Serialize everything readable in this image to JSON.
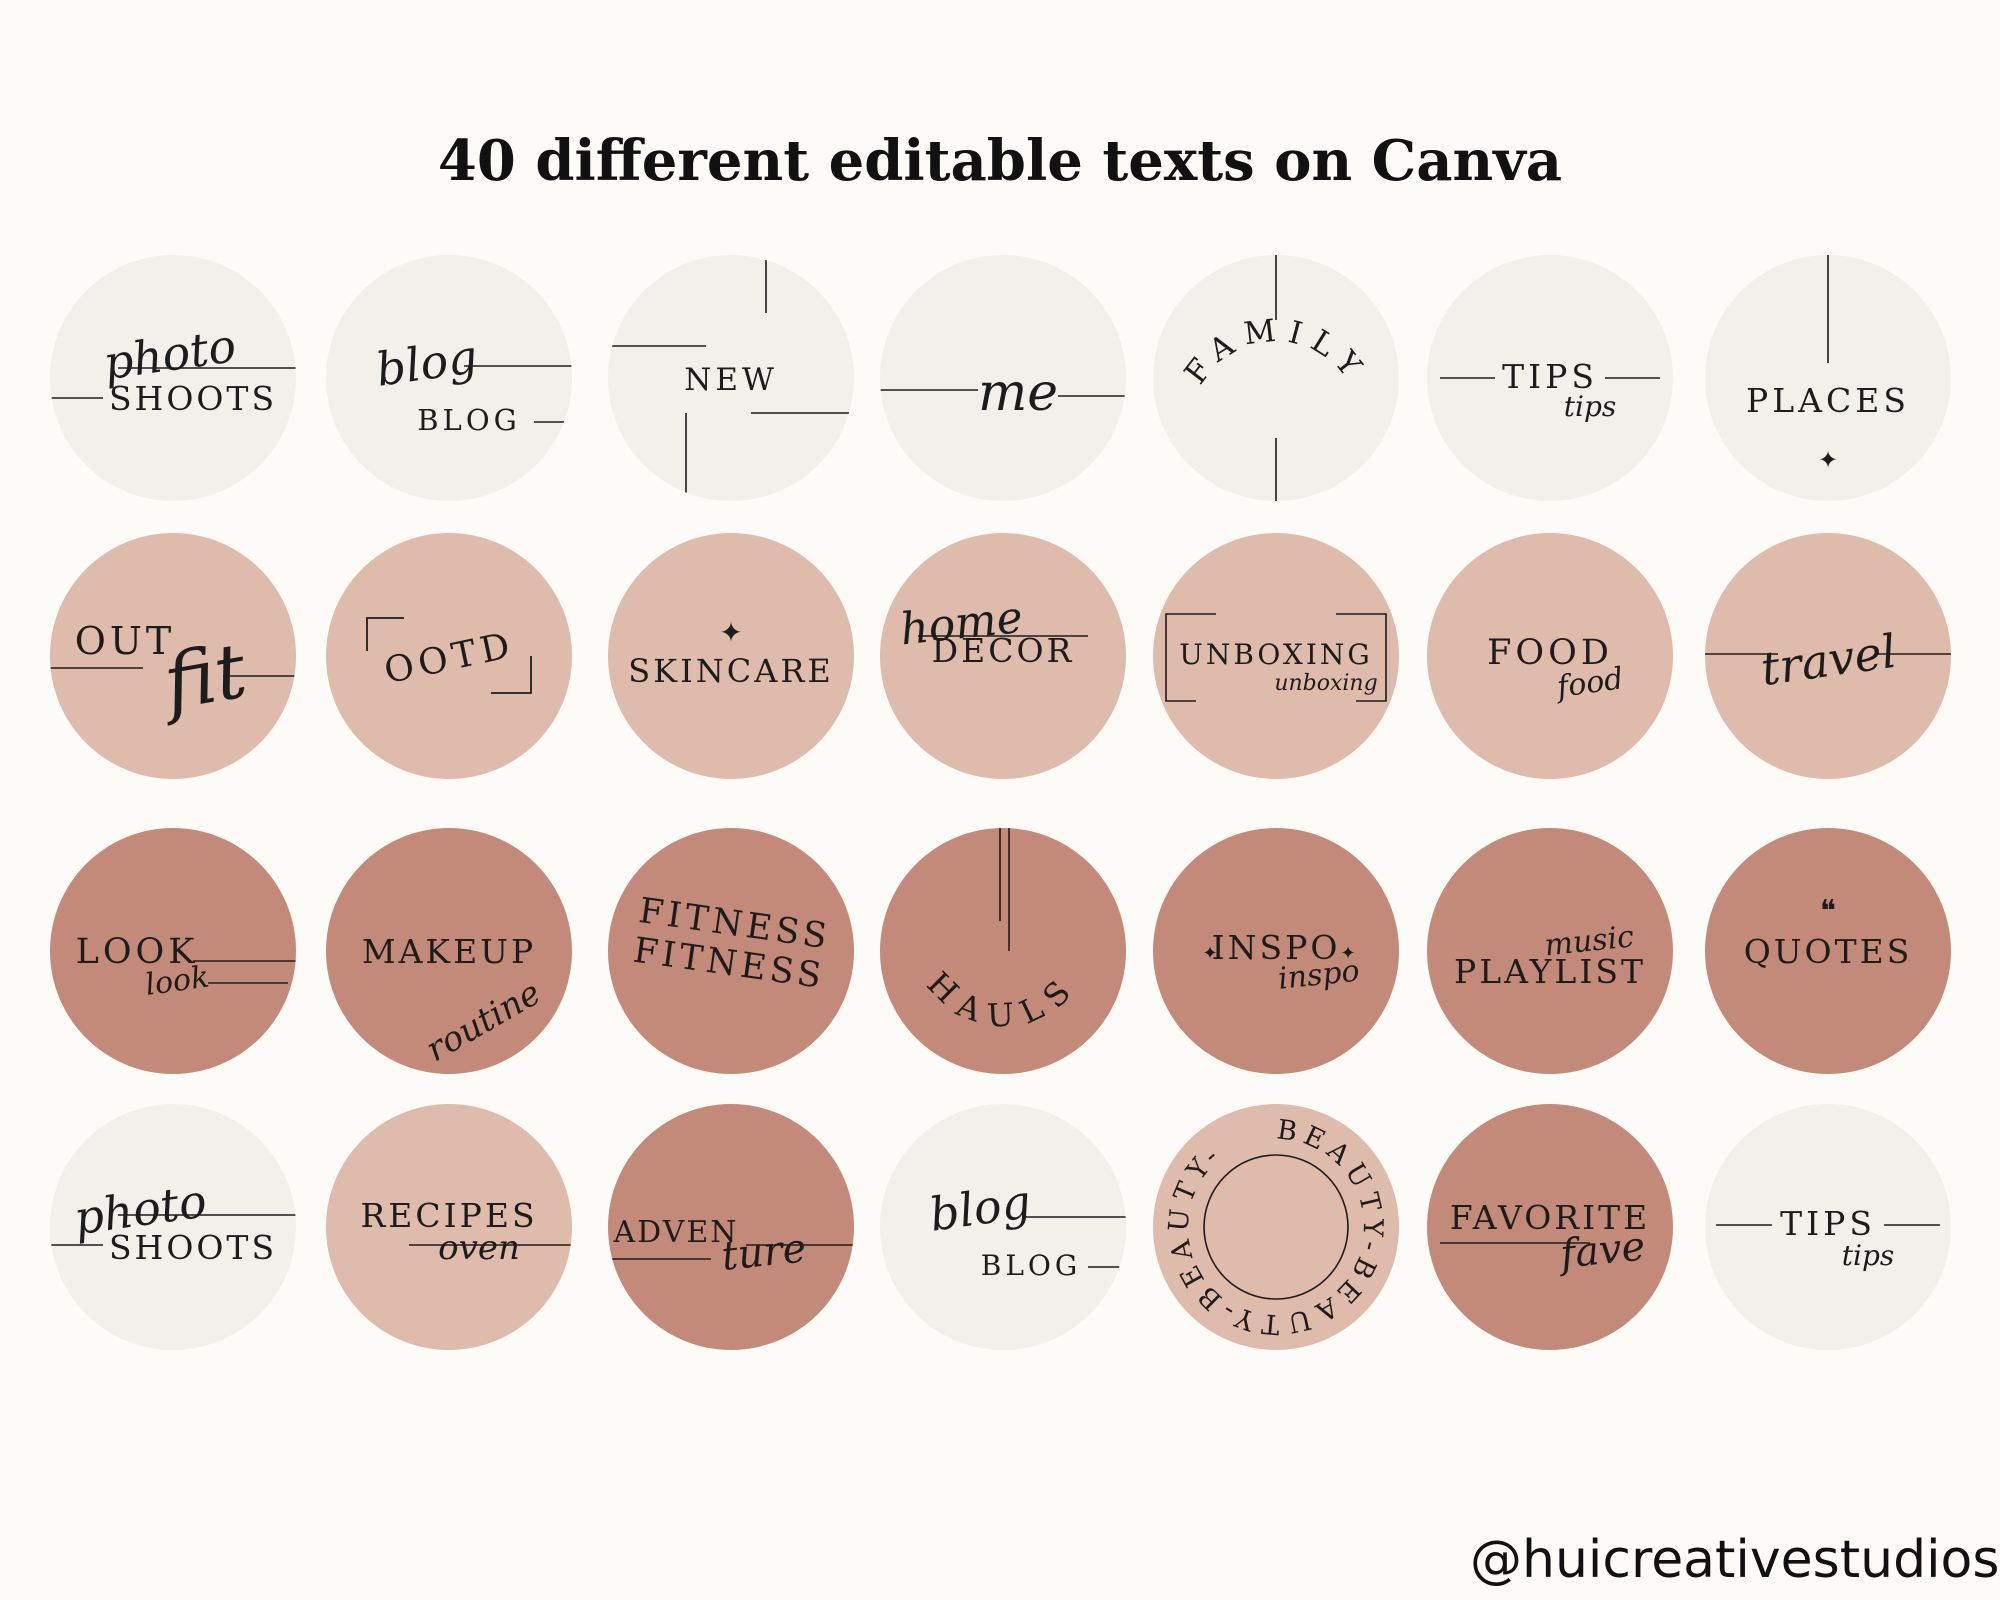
{
  "title": "40 different editable texts on Canva",
  "brand": "@huicreativestudios",
  "colors": {
    "background": "#fdfbf7",
    "light": "#f3efeb",
    "mid": "#debbab",
    "dark": "#c38a79",
    "ink": "#1c1c1c"
  },
  "highlights": [
    {
      "tone": "light",
      "main": "SHOOTS",
      "script": "photo"
    },
    {
      "tone": "light",
      "main": "BLOG",
      "script": "blog"
    },
    {
      "tone": "light",
      "main": "NEW"
    },
    {
      "tone": "light",
      "script": "me"
    },
    {
      "tone": "light",
      "main": "FAMILY"
    },
    {
      "tone": "light",
      "main": "TIPS",
      "script": "tips"
    },
    {
      "tone": "light",
      "main": "PLACES",
      "symbol": "✦"
    },
    {
      "tone": "mid",
      "main": "OUT",
      "script": "fit"
    },
    {
      "tone": "mid",
      "main": "OOTD"
    },
    {
      "tone": "mid",
      "main": "SKINCARE",
      "symbol": "✦"
    },
    {
      "tone": "mid",
      "main": "DECOR",
      "script": "home"
    },
    {
      "tone": "mid",
      "main": "UNBOXING",
      "script": "unboxing"
    },
    {
      "tone": "mid",
      "main": "FOOD",
      "script": "food"
    },
    {
      "tone": "mid",
      "script": "travel"
    },
    {
      "tone": "dark",
      "main": "LOOK",
      "script": "look"
    },
    {
      "tone": "dark",
      "main": "MAKEUP",
      "script": "routine"
    },
    {
      "tone": "dark",
      "main": "FITNESS",
      "main2": "FITNESS"
    },
    {
      "tone": "dark",
      "main": "HAULS"
    },
    {
      "tone": "dark",
      "main": "INSPO",
      "script": "inspo",
      "symbol": "✦"
    },
    {
      "tone": "dark",
      "main": "PLAYLIST",
      "script": "music"
    },
    {
      "tone": "dark",
      "main": "QUOTES",
      "symbol": "❝"
    },
    {
      "tone": "light",
      "main": "SHOOTS",
      "script": "photo"
    },
    {
      "tone": "mid",
      "main": "RECIPES",
      "script": "oven"
    },
    {
      "tone": "dark",
      "main": "ADVEN",
      "script": "ture"
    },
    {
      "tone": "light",
      "main": "BLOG",
      "script": "blog"
    },
    {
      "tone": "mid",
      "main": "BEAUTY-BEAUTY-BEAUTY-"
    },
    {
      "tone": "dark",
      "main": "FAVORITE",
      "script": "fave"
    },
    {
      "tone": "light",
      "main": "TIPS",
      "script": "tips"
    }
  ]
}
